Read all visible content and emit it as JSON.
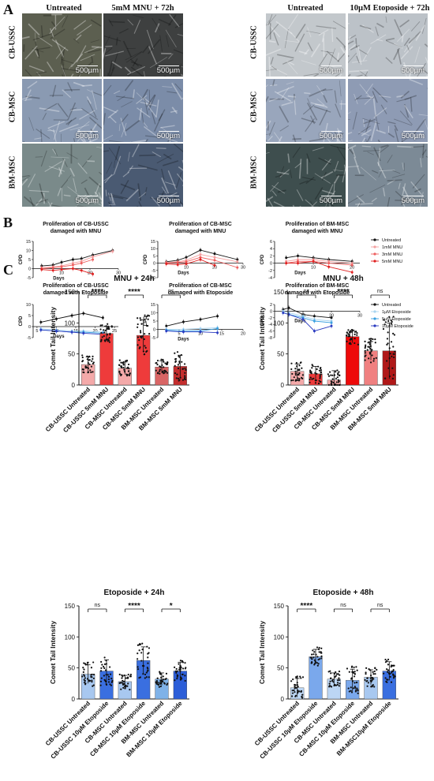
{
  "panel_letters": {
    "a": "A",
    "b": "B",
    "c": "C"
  },
  "panel_a": {
    "left_headers": [
      "Untreated",
      "5mM MNU + 72h"
    ],
    "right_headers": [
      "Untreated",
      "10µM Etoposide + 72h"
    ],
    "row_labels": [
      "CB-USSC",
      "CB-MSC",
      "BM-MSC"
    ],
    "scale_label": "500µm"
  },
  "chart_data": [
    {
      "id": "b1",
      "type": "line",
      "title": "Proliferation of CB-USSC\ndamaged with MNU",
      "xlabel": "Days",
      "ylabel": "CPD",
      "xlim": [
        0,
        30
      ],
      "ylim": [
        -5,
        15
      ],
      "xticks": [
        10,
        20,
        30
      ],
      "yticks": [
        -5,
        0,
        5,
        10,
        15
      ],
      "series": [
        {
          "name": "Untreated",
          "color": "#111111",
          "x": [
            3,
            7,
            10,
            14,
            17,
            21,
            28
          ],
          "y": [
            1.5,
            2.0,
            3.5,
            5.0,
            5.5,
            7.5,
            10.0
          ]
        },
        {
          "name": "1mM MNU",
          "color": "#f4a0a0",
          "x": [
            3,
            7,
            10,
            14,
            17,
            21,
            28
          ],
          "y": [
            0.5,
            1.0,
            1.5,
            3.0,
            4.0,
            6.5,
            9.5
          ]
        },
        {
          "name": "3mM MNU",
          "color": "#ee6060",
          "x": [
            3,
            7,
            10,
            14,
            17,
            21
          ],
          "y": [
            0.0,
            0.5,
            1.0,
            2.0,
            3.0,
            5.0
          ]
        },
        {
          "name": "5mM MNU",
          "color": "#e02020",
          "x": [
            3,
            7,
            10,
            14,
            17,
            21
          ],
          "y": [
            -0.5,
            -1.0,
            -0.5,
            0.0,
            -1.0,
            -3.0
          ]
        }
      ]
    },
    {
      "id": "b2",
      "type": "line",
      "title": "Proliferation of CB-MSC\ndamaged with MNU",
      "xlabel": "Days",
      "ylabel": "CPD",
      "xlim": [
        0,
        30
      ],
      "ylim": [
        -10,
        15
      ],
      "xticks": [
        10,
        20,
        30
      ],
      "yticks": [
        -10,
        -5,
        0,
        5,
        10,
        15
      ],
      "series": [
        {
          "name": "Untreated",
          "color": "#111111",
          "x": [
            3,
            7,
            10,
            15,
            20,
            28
          ],
          "y": [
            1.0,
            2.0,
            4.0,
            9.0,
            6.5,
            2.5
          ]
        },
        {
          "name": "1mM MNU",
          "color": "#f4a0a0",
          "x": [
            3,
            7,
            10,
            15,
            20,
            28
          ],
          "y": [
            0.5,
            1.0,
            2.0,
            6.0,
            4.0,
            1.0
          ]
        },
        {
          "name": "3mM MNU",
          "color": "#ee6060",
          "x": [
            3,
            7,
            10,
            15,
            20,
            28
          ],
          "y": [
            0.0,
            0.5,
            1.0,
            4.0,
            2.0,
            -3.0
          ]
        },
        {
          "name": "5mM MNU",
          "color": "#e02020",
          "x": [
            3,
            7,
            10,
            15,
            20
          ],
          "y": [
            -0.5,
            -1.0,
            -0.5,
            2.5,
            -1.5
          ]
        }
      ]
    },
    {
      "id": "b3",
      "type": "line",
      "title": "Proliferation of BM-MSC\ndamaged with MNU",
      "xlabel": "Days",
      "ylabel": "CPD",
      "xlim": [
        0,
        22
      ],
      "ylim": [
        -4,
        6
      ],
      "xticks": [
        10,
        20
      ],
      "yticks": [
        -4,
        -2,
        0,
        2,
        4,
        6
      ],
      "series": [
        {
          "name": "Untreated",
          "color": "#111111",
          "x": [
            3,
            6,
            10,
            14,
            20
          ],
          "y": [
            1.5,
            2.0,
            1.5,
            1.0,
            0.5
          ]
        },
        {
          "name": "1mM MNU",
          "color": "#f4a0a0",
          "x": [
            3,
            6,
            10,
            14,
            20
          ],
          "y": [
            0.5,
            1.0,
            1.0,
            0.5,
            0.0
          ]
        },
        {
          "name": "3mM MNU",
          "color": "#ee6060",
          "x": [
            3,
            6,
            10,
            14,
            20
          ],
          "y": [
            0.0,
            0.5,
            0.5,
            0.0,
            -0.5
          ]
        },
        {
          "name": "5mM MNU",
          "color": "#e02020",
          "x": [
            3,
            6,
            10,
            14,
            20
          ],
          "y": [
            0.0,
            0.0,
            0.5,
            -1.0,
            -2.5
          ]
        }
      ]
    },
    {
      "id": "b4",
      "type": "line",
      "title": "Proliferation of CB-USSC\ndamaged with Etoposide",
      "xlabel": "Days",
      "ylabel": "CPD",
      "xlim": [
        4,
        26
      ],
      "ylim": [
        -5,
        10
      ],
      "xticks": [
        5,
        10,
        15,
        20,
        25
      ],
      "yticks": [
        -5,
        0,
        5,
        10
      ],
      "series": [
        {
          "name": "Untreated",
          "color": "#111111",
          "x": [
            6,
            10,
            14,
            17,
            22
          ],
          "y": [
            2.0,
            3.5,
            5.0,
            6.0,
            4.0
          ]
        },
        {
          "name": "1µM Etoposide",
          "color": "#a8d4f0",
          "x": [
            6,
            10,
            14,
            17,
            22
          ],
          "y": [
            -1.0,
            -1.5,
            -2.0,
            -2.0,
            -2.5
          ]
        },
        {
          "name": "5µM Etoposide",
          "color": "#3aa0e0",
          "x": [
            6,
            10,
            14,
            17,
            22
          ],
          "y": [
            -1.5,
            -2.0,
            -2.5,
            -2.5,
            -3.0
          ]
        },
        {
          "name": "10µM Etoposide",
          "color": "#2a3ac0",
          "x": [
            6,
            10,
            14,
            17,
            22
          ],
          "y": [
            -1.5,
            -2.0,
            -2.5,
            -3.0,
            -3.5
          ]
        }
      ]
    },
    {
      "id": "b5",
      "type": "line",
      "title": "Proliferation of CB-MSC\ndamaged with Etoposide",
      "xlabel": "Days",
      "ylabel": "CPD",
      "xlim": [
        0,
        20
      ],
      "ylim": [
        -5,
        15
      ],
      "xticks": [
        5,
        10,
        15,
        20
      ],
      "yticks": [
        -5,
        0,
        5,
        10,
        15
      ],
      "series": [
        {
          "name": "Untreated",
          "color": "#111111",
          "x": [
            2,
            6,
            10,
            14
          ],
          "y": [
            2.0,
            4.5,
            6.0,
            8.0
          ]
        },
        {
          "name": "1µM Etoposide",
          "color": "#a8d4f0",
          "x": [
            2,
            6,
            10,
            14
          ],
          "y": [
            0.0,
            0.0,
            0.5,
            1.0
          ]
        },
        {
          "name": "5µM Etoposide",
          "color": "#3aa0e0",
          "x": [
            2,
            6,
            10,
            14
          ],
          "y": [
            -0.5,
            -1.0,
            -1.0,
            0.5
          ]
        },
        {
          "name": "10µM Etoposide",
          "color": "#2a3ac0",
          "x": [
            2,
            6,
            10,
            14
          ],
          "y": [
            -1.0,
            -1.5,
            -1.5,
            -2.0
          ]
        }
      ]
    },
    {
      "id": "b6",
      "type": "line",
      "title": "Proliferation of BM-MSC\ndamaged with Etoposide",
      "xlabel": "Days",
      "ylabel": "CPD",
      "xlim": [
        0,
        30
      ],
      "ylim": [
        -8,
        2
      ],
      "xticks": [
        10,
        20,
        30
      ],
      "yticks": [
        -8,
        -6,
        -4,
        -2,
        0,
        2
      ],
      "series": [
        {
          "name": "Untreated",
          "color": "#111111",
          "x": [
            3,
            5,
            10,
            14,
            20
          ],
          "y": [
            0.5,
            1.0,
            -1.0,
            -1.5,
            -2.0
          ]
        },
        {
          "name": "1µM Etoposide",
          "color": "#a8d4f0",
          "x": [
            3,
            5,
            10,
            14,
            20
          ],
          "y": [
            0.0,
            -0.5,
            -1.5,
            -2.5,
            -3.0
          ]
        },
        {
          "name": "5µM Etoposide",
          "color": "#3aa0e0",
          "x": [
            3,
            5,
            10,
            14,
            20
          ],
          "y": [
            -0.5,
            -1.0,
            -2.0,
            -3.0,
            -3.5
          ]
        },
        {
          "name": "10µM Etoposide",
          "color": "#2a3ac0",
          "x": [
            3,
            5,
            10,
            14,
            20
          ],
          "y": [
            -0.5,
            -1.0,
            -2.5,
            -6.0,
            -4.5
          ]
        }
      ]
    },
    {
      "id": "c1",
      "type": "bar",
      "title": "MNU + 24h",
      "ylabel": "Comet Tail Intensity",
      "ylim": [
        0,
        150
      ],
      "yticks": [
        0,
        50,
        100,
        150
      ],
      "categories": [
        "CB-USSC Untreated",
        "CB-USSC 5mM MNU",
        "CB-MSC Untreated",
        "CB-MSC 5mM MNU",
        "BM-MSC Untreated",
        "BM-MSC 5mM MNU"
      ],
      "values": [
        33,
        83,
        27,
        80,
        29,
        30
      ],
      "errors": [
        12,
        12,
        10,
        25,
        10,
        18
      ],
      "colors": [
        "#f4a9a9",
        "#ee3b3b",
        "#f4a9a9",
        "#ee3b3b",
        "#d96565",
        "#c42e2e"
      ],
      "significance": [
        {
          "pair": [
            0,
            1
          ],
          "label": "****"
        },
        {
          "pair": [
            2,
            3
          ],
          "label": "****"
        },
        {
          "pair": [
            4,
            5
          ],
          "label": "ns"
        }
      ]
    },
    {
      "id": "c2",
      "type": "bar",
      "title": "MNU + 48h",
      "ylabel": "Comet Tail Intensity",
      "ylim": [
        0,
        150
      ],
      "yticks": [
        0,
        50,
        100,
        150
      ],
      "categories": [
        "CB-USSC Untreated",
        "CB-USSC 5mM MNU",
        "CB-MSC Untreated",
        "CB-MSC 5mM MNU",
        "BM-MSC Untreated",
        "BM-MSC 5mM MNU"
      ],
      "values": [
        22,
        18,
        8,
        78,
        55,
        55
      ],
      "errors": [
        12,
        12,
        15,
        10,
        15,
        45
      ],
      "colors": [
        "#f4a9a9",
        "#ee3b3b",
        "#f4a9a9",
        "#ee0a0a",
        "#f08080",
        "#b01818"
      ],
      "significance": [
        {
          "pair": [
            0,
            1
          ],
          "label": "ns"
        },
        {
          "pair": [
            2,
            3
          ],
          "label": "****"
        },
        {
          "pair": [
            4,
            5
          ],
          "label": "ns"
        }
      ]
    },
    {
      "id": "c3",
      "type": "bar",
      "title": "Etoposide + 24h",
      "ylabel": "Comet Tail Intensity",
      "ylim": [
        0,
        150
      ],
      "yticks": [
        0,
        50,
        100,
        150
      ],
      "categories": [
        "CB-USSC Untreated",
        "CB-USSC 10µM Etoposide",
        "CB-MSC Untreated",
        "CB-MSC 10µM Etoposide",
        "BM-MSC Untreated",
        "BM-MSC 10µM Etoposide"
      ],
      "values": [
        40,
        45,
        28,
        62,
        32,
        45
      ],
      "errors": [
        15,
        18,
        10,
        22,
        10,
        14
      ],
      "colors": [
        "#a8c8f0",
        "#3a6fe0",
        "#a8c8f0",
        "#3a6fe0",
        "#7fb2e8",
        "#2c5ed8"
      ],
      "significance": [
        {
          "pair": [
            0,
            1
          ],
          "label": "ns"
        },
        {
          "pair": [
            2,
            3
          ],
          "label": "****"
        },
        {
          "pair": [
            4,
            5
          ],
          "label": "*"
        }
      ]
    },
    {
      "id": "c4",
      "type": "bar",
      "title": "Etoposide + 48h",
      "ylabel": "Comet Tail Intensity",
      "ylim": [
        0,
        150
      ],
      "yticks": [
        0,
        50,
        100,
        150
      ],
      "categories": [
        "CB-USSC Untreated",
        "CB-USSC 10µM Etoposide",
        "CB-MSC Untreated",
        "CB-MSC 10µM Etoposide",
        "BM-MSC Untreated",
        "BM-MSC 10µM Etoposide"
      ],
      "values": [
        18,
        68,
        32,
        30,
        35,
        45
      ],
      "errors": [
        15,
        12,
        10,
        18,
        12,
        15
      ],
      "colors": [
        "#bcd6f4",
        "#7aa8ec",
        "#bcd6f4",
        "#7aa8ec",
        "#a8c8f0",
        "#3a6fe0"
      ],
      "categories_display": [
        "CB-USSC Untreated",
        "CB-USSC 10µM Etoposide",
        "CB-MSC Untreated",
        "CB-MSC 10µM Etoposide",
        "BM-MSC Untreated",
        "BM-MSC10µM Etoposide"
      ],
      "significance": [
        {
          "pair": [
            0,
            1
          ],
          "label": "****"
        },
        {
          "pair": [
            2,
            3
          ],
          "label": "ns"
        },
        {
          "pair": [
            4,
            5
          ],
          "label": "ns"
        }
      ]
    }
  ],
  "tile_colors": {
    "row1_left": [
      "#5c5f50",
      "#3e4040"
    ],
    "row1_right": [
      "#c3c8cc",
      "#bcc2c8"
    ],
    "row2_left": [
      "#8a9ab2",
      "#7b8ca8"
    ],
    "row2_right": [
      "#99a6bc",
      "#8e9bb4"
    ],
    "row3_left": [
      "#7a8a8a",
      "#4a5a72"
    ],
    "row3_right": [
      "#3e4e4e",
      "#7c8a96"
    ]
  }
}
